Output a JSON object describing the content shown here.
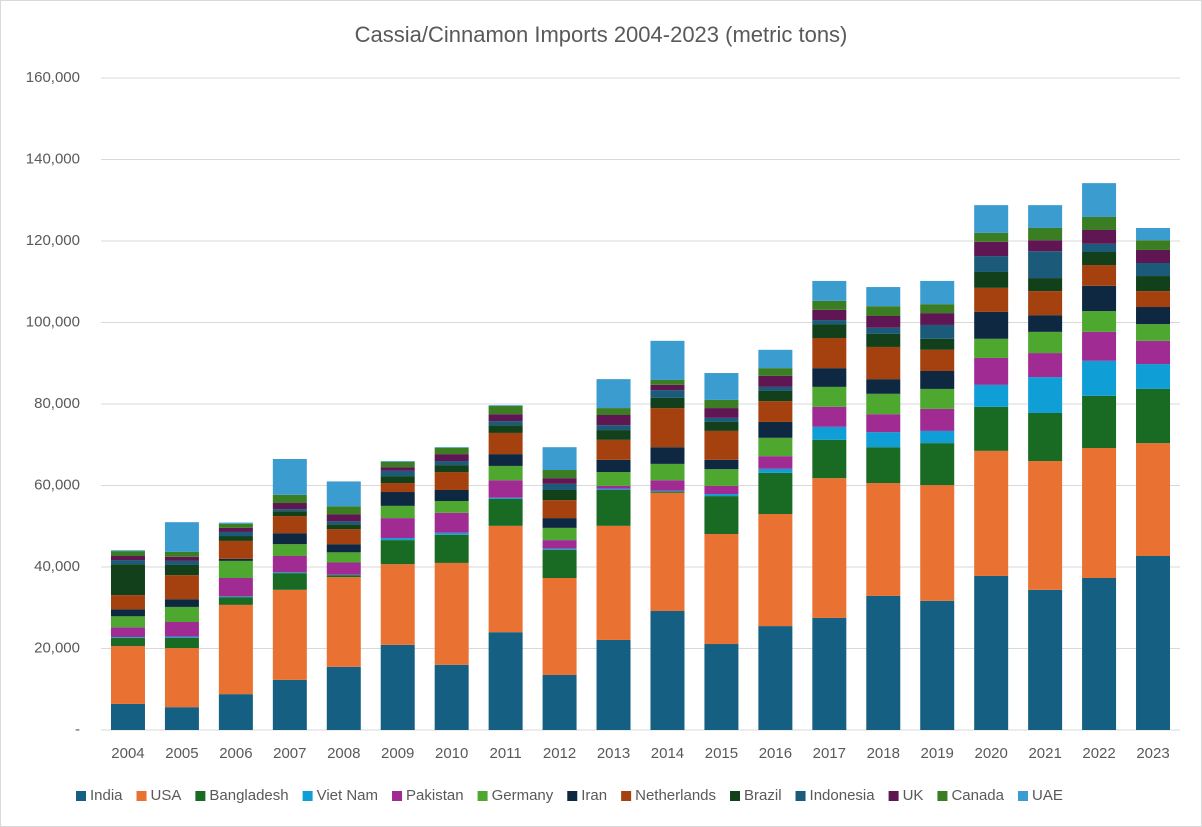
{
  "chart_data": {
    "type": "stacked-bar",
    "title": "Cassia/Cinnamon Imports 2004-2023 (metric tons)",
    "categories": [
      "2004",
      "2005",
      "2006",
      "2007",
      "2008",
      "2009",
      "2010",
      "2011",
      "2012",
      "2013",
      "2014",
      "2015",
      "2016",
      "2017",
      "2018",
      "2019",
      "2020",
      "2021",
      "2022",
      "2023"
    ],
    "ylim": [
      0,
      160000
    ],
    "yticks": [
      {
        "value": 0,
        "label": "-"
      },
      {
        "value": 20000,
        "label": "20,000"
      },
      {
        "value": 40000,
        "label": "40,000"
      },
      {
        "value": 60000,
        "label": "60,000"
      },
      {
        "value": 80000,
        "label": "80,000"
      },
      {
        "value": 100000,
        "label": "100,000"
      },
      {
        "value": 120000,
        "label": "120,000"
      },
      {
        "value": 140000,
        "label": "140,000"
      },
      {
        "value": 160000,
        "label": "160,000"
      }
    ],
    "grid": true,
    "legend": "bottom",
    "series": [
      {
        "name": "India",
        "color": "#156082",
        "values": [
          6400,
          5600,
          8800,
          12300,
          15500,
          20900,
          16000,
          24000,
          13500,
          22100,
          29200,
          21100,
          25500,
          27500,
          32900,
          31700,
          37800,
          34400,
          37300,
          42700
        ]
      },
      {
        "name": "USA",
        "color": "#e97132",
        "values": [
          14200,
          14500,
          21900,
          22100,
          22000,
          19800,
          25000,
          26100,
          23800,
          28000,
          29000,
          27000,
          27500,
          34300,
          27700,
          28400,
          30700,
          31600,
          31900,
          27700
        ]
      },
      {
        "name": "Bangladesh",
        "color": "#196b24",
        "values": [
          2000,
          2500,
          1900,
          4100,
          500,
          5900,
          6900,
          6600,
          6900,
          8800,
          300,
          9300,
          10100,
          9400,
          8800,
          10300,
          10800,
          11800,
          12800,
          13300
        ]
      },
      {
        "name": "Viet Nam",
        "color": "#0f9ed5",
        "values": [
          200,
          300,
          200,
          200,
          100,
          500,
          500,
          300,
          300,
          300,
          200,
          500,
          1000,
          3200,
          3700,
          3000,
          5400,
          8800,
          8600,
          6100
        ]
      },
      {
        "name": "Pakistan",
        "color": "#a02b93",
        "values": [
          2400,
          3600,
          4500,
          4000,
          3000,
          4900,
          4900,
          4300,
          2100,
          700,
          2600,
          2000,
          3100,
          4900,
          4400,
          5400,
          6600,
          5900,
          7100,
          5700
        ]
      },
      {
        "name": "Germany",
        "color": "#4ea72e",
        "values": [
          2700,
          3700,
          4200,
          2900,
          2500,
          3000,
          2900,
          3500,
          3000,
          3400,
          4000,
          4100,
          4500,
          4900,
          5000,
          4900,
          4700,
          5200,
          5100,
          4100
        ]
      },
      {
        "name": "Iran",
        "color": "#0e2841",
        "values": [
          1700,
          1900,
          500,
          2700,
          2000,
          3400,
          2700,
          2900,
          2400,
          3000,
          4100,
          2300,
          3900,
          4600,
          3600,
          4400,
          6600,
          4100,
          6200,
          4200
        ]
      },
      {
        "name": "Netherlands",
        "color": "#a5410f",
        "values": [
          3500,
          5900,
          4400,
          4200,
          3700,
          2200,
          4400,
          5200,
          4400,
          4900,
          9600,
          7100,
          5100,
          7400,
          7900,
          5200,
          5900,
          5900,
          5100,
          3900
        ]
      },
      {
        "name": "Brazil",
        "color": "#12401a",
        "values": [
          7600,
          2500,
          1200,
          1200,
          1200,
          1700,
          1700,
          1900,
          2500,
          2400,
          2500,
          2200,
          2500,
          3400,
          3200,
          2700,
          3900,
          3200,
          3200,
          3700
        ]
      },
      {
        "name": "Indonesia",
        "color": "#1b5a78",
        "values": [
          1000,
          1000,
          1000,
          500,
          700,
          1300,
          1000,
          1000,
          1500,
          1200,
          1900,
          1000,
          1000,
          1000,
          1500,
          3400,
          3900,
          6600,
          2000,
          3200
        ]
      },
      {
        "name": "UK",
        "color": "#5f1653",
        "values": [
          1000,
          1000,
          1000,
          1500,
          1700,
          900,
          1700,
          1700,
          1400,
          2500,
          1300,
          2400,
          2700,
          2500,
          2900,
          2900,
          3500,
          2700,
          3400,
          3200
        ]
      },
      {
        "name": "Canada",
        "color": "#3b7d23",
        "values": [
          1200,
          1200,
          1000,
          2000,
          2000,
          1300,
          1500,
          2000,
          2000,
          1700,
          1200,
          2000,
          1900,
          2200,
          2400,
          2200,
          2200,
          3000,
          3200,
          2400
        ]
      },
      {
        "name": "UAE",
        "color": "#3b9cd0",
        "values": [
          200,
          7300,
          300,
          8800,
          6100,
          200,
          200,
          200,
          5600,
          7100,
          9600,
          6600,
          4500,
          4900,
          4700,
          5700,
          6800,
          5600,
          8300,
          3000
        ]
      }
    ]
  }
}
